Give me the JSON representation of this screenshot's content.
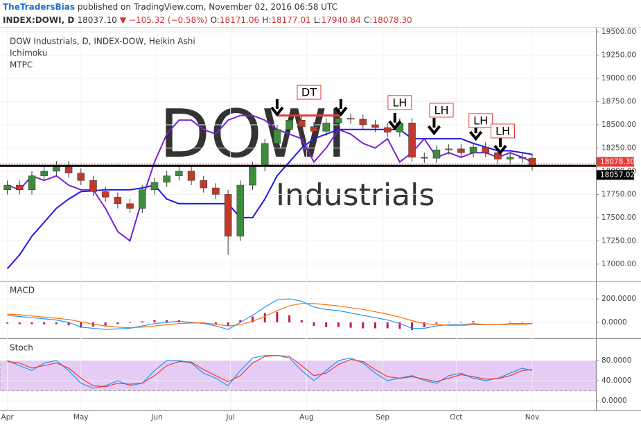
{
  "header": {
    "author": "TheTradersBias",
    "published": "published on TradingView.com, November 02, 2016 06:58 UTC",
    "symbol": "INDEX:DOWI, D",
    "last": "18037.10",
    "change": "▼ −105.32 (−0.58%)",
    "ohlc": [
      {
        "label": "O:",
        "value": "18171.06"
      },
      {
        "label": "H:",
        "value": "18177.01"
      },
      {
        "label": "L:",
        "value": "17940.84"
      },
      {
        "label": "C:",
        "value": "18078.30"
      }
    ]
  },
  "chart_data": {
    "type": "candlestick",
    "title": "DOW Industrials, D, INDEX-DOW, Heikin Ashi",
    "watermark": [
      "DOWI",
      "Industrials"
    ],
    "up_color": "#3c8d3c",
    "down_color": "#c0392b",
    "grid": true,
    "x": [
      0,
      5,
      10,
      15,
      20,
      25,
      30,
      35,
      40,
      45,
      50,
      55,
      60,
      65,
      70,
      75,
      80,
      85,
      90,
      95,
      100,
      105,
      110,
      115,
      120,
      125,
      130,
      135,
      140,
      145,
      150,
      155,
      160,
      165,
      170,
      175,
      180,
      185,
      190,
      195,
      200,
      205,
      210,
      214
    ],
    "open": [
      17800,
      17850,
      17800,
      17950,
      18000,
      18060,
      17980,
      17900,
      17780,
      17720,
      17650,
      17600,
      17800,
      17880,
      17950,
      18000,
      17900,
      17820,
      17750,
      17300,
      17850,
      18050,
      18300,
      18450,
      18550,
      18480,
      18430,
      18520,
      18570,
      18560,
      18500,
      18470,
      18420,
      18520,
      18150,
      18140,
      18230,
      18240,
      18200,
      18260,
      18200,
      18130,
      18150,
      18140
    ],
    "close": [
      17850,
      17800,
      17950,
      18000,
      18060,
      17980,
      17900,
      17780,
      17720,
      17650,
      17600,
      17800,
      17880,
      17950,
      18000,
      17900,
      17820,
      17750,
      17300,
      17850,
      18050,
      18300,
      18450,
      18550,
      18480,
      18430,
      18520,
      18570,
      18560,
      18500,
      18470,
      18420,
      18520,
      18150,
      18140,
      18230,
      18240,
      18200,
      18260,
      18200,
      18130,
      18150,
      18140,
      18057
    ],
    "high": [
      17900,
      17900,
      18000,
      18050,
      18110,
      18110,
      18030,
      17950,
      17830,
      17770,
      17700,
      17850,
      17930,
      18000,
      18050,
      18050,
      17950,
      17870,
      17800,
      17900,
      18100,
      18350,
      18500,
      18600,
      18600,
      18530,
      18570,
      18620,
      18620,
      18610,
      18550,
      18520,
      18570,
      18570,
      18200,
      18280,
      18290,
      18290,
      18310,
      18310,
      18250,
      18200,
      18200,
      18190
    ],
    "low": [
      17750,
      17750,
      17750,
      17900,
      17950,
      17930,
      17850,
      17730,
      17670,
      17600,
      17550,
      17550,
      17750,
      17830,
      17900,
      17850,
      17770,
      17700,
      17100,
      17250,
      17800,
      18000,
      18250,
      18400,
      18430,
      18380,
      18380,
      18470,
      18510,
      18450,
      18420,
      18370,
      18370,
      18100,
      18090,
      18090,
      18180,
      18150,
      18150,
      18150,
      18080,
      18080,
      18090,
      18007
    ],
    "series": [
      {
        "name": "Ichimoku",
        "color": "#1a1ae6",
        "values": [
          16950,
          17100,
          17300,
          17450,
          17600,
          17700,
          17780,
          17790,
          17800,
          17800,
          17800,
          17820,
          17850,
          17700,
          17650,
          17650,
          17650,
          17650,
          17650,
          17500,
          17500,
          17700,
          17950,
          18100,
          18250,
          18350,
          18400,
          18450,
          18450,
          18450,
          18450,
          18450,
          18450,
          18350,
          18350,
          18350,
          18350,
          18350,
          18300,
          18260,
          18220,
          18220,
          18200,
          18180
        ]
      },
      {
        "name": "MTPC",
        "color": "#7b1fd6",
        "values": [
          17850,
          17800,
          17950,
          17900,
          17950,
          17850,
          17800,
          17800,
          17600,
          17350,
          17250,
          17700,
          18100,
          18400,
          18550,
          18550,
          18450,
          18400,
          18550,
          18600,
          18600,
          18550,
          18450,
          18400,
          18350,
          18100,
          18250,
          18450,
          18400,
          18300,
          18250,
          18350,
          18100,
          18200,
          18350,
          18150,
          18200,
          18150,
          18200,
          18200,
          18150,
          18200,
          18150,
          18100
        ]
      }
    ],
    "hlines": [
      {
        "value": 18078.3,
        "label": "18078.30",
        "color": "#e53935"
      },
      {
        "value": 18057.02,
        "label": "18057.02",
        "color": "#000000"
      }
    ],
    "segments": [
      {
        "x": [
          110,
          136
        ],
        "y": 18600,
        "color": "#e53935"
      }
    ],
    "arrows": [
      {
        "x": 110,
        "y": 18612
      },
      {
        "x": 136,
        "y": 18612
      },
      {
        "x": 158,
        "y": 18463
      },
      {
        "x": 174,
        "y": 18410
      },
      {
        "x": 191,
        "y": 18350
      },
      {
        "x": 201,
        "y": 18200
      }
    ],
    "labels": [
      {
        "text": "DT",
        "x": 123,
        "y": 18850
      },
      {
        "text": "LH",
        "x": 160,
        "y": 18740
      },
      {
        "text": "LH",
        "x": 177,
        "y": 18657
      },
      {
        "text": "LH",
        "x": 193,
        "y": 18545
      },
      {
        "text": "LH",
        "x": 202,
        "y": 18433
      }
    ],
    "xlim": [
      -3,
      240
    ],
    "xticks": [
      {
        "value": 0,
        "label": "Apr"
      },
      {
        "value": 30,
        "label": "May"
      },
      {
        "value": 61,
        "label": "Jun"
      },
      {
        "value": 91,
        "label": "Jul"
      },
      {
        "value": 122,
        "label": "Aug"
      },
      {
        "value": 153,
        "label": "Sep"
      },
      {
        "value": 183,
        "label": "Oct"
      },
      {
        "value": 214,
        "label": "Nov"
      }
    ],
    "ylim": [
      16820,
      19545
    ],
    "yticks": [
      {
        "value": 17000,
        "label": "17000.00"
      },
      {
        "value": 17250,
        "label": "17250.00"
      },
      {
        "value": 17500,
        "label": "17500.00"
      },
      {
        "value": 17750,
        "label": "17750.00"
      },
      {
        "value": 18000,
        "label": "18000.00"
      },
      {
        "value": 18250,
        "label": "18250.00"
      },
      {
        "value": 18500,
        "label": "18500.00"
      },
      {
        "value": 18750,
        "label": "18750.00"
      },
      {
        "value": 19000,
        "label": "19000.00"
      },
      {
        "value": 19250,
        "label": "19250.00"
      },
      {
        "value": 19500,
        "label": "19500.00"
      }
    ],
    "panels": [
      {
        "title": "MACD",
        "ylim": [
          -135,
          353
        ],
        "yticks": [
          {
            "value": 0,
            "label": "0.0000"
          },
          {
            "value": 200,
            "label": "200.0000"
          }
        ],
        "series": [
          {
            "style": "bar",
            "color": "#c2185b",
            "values": [
              -10,
              -15,
              -15,
              -15,
              -15,
              -25,
              -45,
              -35,
              -30,
              -15,
              -5,
              10,
              20,
              20,
              20,
              5,
              -5,
              -15,
              -30,
              20,
              50,
              80,
              90,
              60,
              20,
              -30,
              -40,
              -40,
              -45,
              -50,
              -50,
              -50,
              -55,
              -65,
              -40,
              -10,
              5,
              5,
              10,
              0,
              0,
              5,
              5,
              2
            ]
          },
          {
            "style": "line",
            "color": "#2196f3",
            "values": [
              60,
              50,
              40,
              30,
              20,
              0,
              -40,
              -50,
              -60,
              -55,
              -50,
              -30,
              -10,
              0,
              10,
              0,
              -10,
              -30,
              -60,
              0,
              60,
              130,
              190,
              200,
              180,
              130,
              110,
              100,
              80,
              60,
              40,
              20,
              -10,
              -50,
              -50,
              -30,
              -20,
              -20,
              -10,
              -20,
              -20,
              -10,
              -10,
              -10
            ]
          },
          {
            "style": "line",
            "color": "#ff6d00",
            "values": [
              70,
              65,
              55,
              45,
              35,
              25,
              5,
              -15,
              -30,
              -40,
              -45,
              -40,
              -30,
              -20,
              -10,
              -5,
              -5,
              -15,
              -30,
              -20,
              10,
              50,
              100,
              140,
              160,
              160,
              150,
              140,
              125,
              110,
              90,
              70,
              45,
              15,
              -10,
              -20,
              -25,
              -25,
              -20,
              -20,
              -20,
              -15,
              -15,
              -12
            ]
          }
        ]
      },
      {
        "title": "Stoch",
        "ylim": [
          -19,
          124
        ],
        "band": [
          20,
          80
        ],
        "band_color": "#e6ccf5",
        "yticks": [
          {
            "value": 0,
            "label": "0.0000"
          },
          {
            "value": 40,
            "label": "40.0000"
          },
          {
            "value": 80,
            "label": "80.0000"
          }
        ],
        "series": [
          {
            "style": "line",
            "color": "#2196f3",
            "values": [
              80,
              70,
              60,
              75,
              80,
              60,
              35,
              25,
              30,
              40,
              30,
              35,
              60,
              80,
              80,
              75,
              55,
              45,
              30,
              60,
              85,
              90,
              90,
              85,
              60,
              40,
              60,
              80,
              85,
              75,
              55,
              40,
              45,
              50,
              40,
              35,
              50,
              55,
              45,
              40,
              45,
              55,
              65,
              60
            ]
          },
          {
            "style": "line",
            "color": "#e53935",
            "values": [
              78,
              75,
              65,
              70,
              75,
              65,
              45,
              30,
              28,
              35,
              33,
              35,
              50,
              70,
              78,
              77,
              62,
              50,
              38,
              50,
              75,
              88,
              90,
              88,
              70,
              50,
              55,
              72,
              82,
              78,
              62,
              48,
              45,
              48,
              43,
              38,
              45,
              52,
              48,
              43,
              44,
              50,
              60,
              62
            ]
          }
        ]
      }
    ]
  }
}
